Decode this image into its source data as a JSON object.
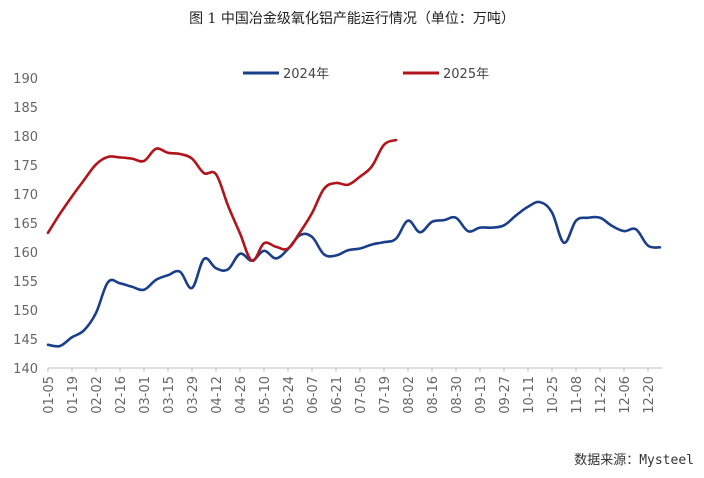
{
  "title": "图 1 中国冶金级氧化铝产能运行情况（单位：万吨）",
  "source": "数据来源：Mysteel",
  "chart_data": {
    "type": "line",
    "title": "图 1 中国冶金级氧化铝产能运行情况（单位：万吨）",
    "xlabel": "",
    "ylabel": "",
    "ylim": [
      140,
      190
    ],
    "yticks": [
      140,
      145,
      150,
      155,
      160,
      165,
      170,
      175,
      180,
      185,
      190
    ],
    "categories": [
      "01-05",
      "01-12",
      "01-19",
      "01-26",
      "02-02",
      "02-09",
      "02-16",
      "02-23",
      "03-01",
      "03-08",
      "03-15",
      "03-22",
      "03-29",
      "04-05",
      "04-12",
      "04-19",
      "04-26",
      "05-03",
      "05-10",
      "05-17",
      "05-24",
      "05-31",
      "06-07",
      "06-14",
      "06-21",
      "06-28",
      "07-05",
      "07-12",
      "07-19",
      "07-26",
      "08-02",
      "08-09",
      "08-16",
      "08-23",
      "08-30",
      "09-06",
      "09-13",
      "09-20",
      "09-27",
      "10-04",
      "10-11",
      "10-18",
      "10-25",
      "11-01",
      "11-08",
      "11-15",
      "11-22",
      "11-29",
      "12-06",
      "12-13",
      "12-20",
      "12-27"
    ],
    "xtick_labels": [
      "01-05",
      "01-19",
      "02-02",
      "02-16",
      "03-01",
      "03-15",
      "03-29",
      "04-12",
      "04-26",
      "05-10",
      "05-24",
      "06-07",
      "06-21",
      "07-05",
      "07-19",
      "08-02",
      "08-16",
      "08-30",
      "09-13",
      "09-27",
      "10-11",
      "10-25",
      "11-08",
      "11-22",
      "12-06",
      "12-20"
    ],
    "legend_position": "top-center",
    "grid": false,
    "series": [
      {
        "name": "2024年",
        "color": "#1a3f8a",
        "values": [
          144.0,
          143.8,
          145.3,
          146.5,
          149.5,
          154.8,
          154.6,
          154.0,
          153.5,
          155.2,
          156.0,
          156.6,
          153.8,
          158.8,
          157.2,
          157.0,
          159.7,
          158.5,
          160.2,
          158.9,
          160.5,
          162.9,
          162.6,
          159.6,
          159.4,
          160.3,
          160.6,
          161.3,
          161.7,
          162.3,
          165.4,
          163.4,
          165.2,
          165.5,
          165.9,
          163.6,
          164.2,
          164.2,
          164.6,
          166.3,
          167.8,
          168.6,
          166.8,
          161.6,
          165.4,
          165.9,
          165.9,
          164.5,
          163.6,
          163.9,
          161.1,
          160.8
        ]
      },
      {
        "name": "2025年",
        "color": "#b2141a",
        "values": [
          163.3,
          166.6,
          169.6,
          172.4,
          175.1,
          176.4,
          176.3,
          176.1,
          175.7,
          177.8,
          177.1,
          176.9,
          176.1,
          173.6,
          173.4,
          168.0,
          163.2,
          158.5,
          161.5,
          160.9,
          160.6,
          163.4,
          166.7,
          170.9,
          171.9,
          171.6,
          173.0,
          174.8,
          178.5,
          179.3,
          null,
          null,
          null,
          null,
          null,
          null,
          null,
          null,
          null,
          null,
          null,
          null,
          null,
          null,
          null,
          null,
          null,
          null,
          null,
          null,
          null,
          null
        ]
      }
    ]
  }
}
